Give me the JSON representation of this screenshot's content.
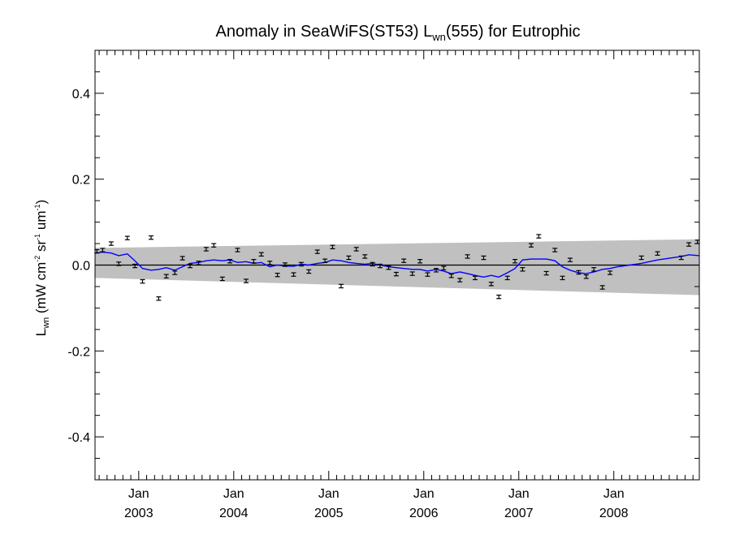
{
  "title": {
    "prefix": "Anomaly in SeaWiFS(ST53) L",
    "sub": "wn",
    "suffix": "(555) for Eutrophic"
  },
  "ylabel": {
    "main": "L",
    "sub": "wn",
    "rest1": " (mW cm",
    "sup1": "-2",
    "rest2": " sr",
    "sup2": "-1",
    "rest3": " um",
    "sup3": "-1",
    "rest4": ")"
  },
  "chart_data": {
    "type": "scatter",
    "xlim": [
      2002.54,
      2008.9
    ],
    "ylim": [
      -0.5,
      0.5
    ],
    "yticks": [
      0.4,
      0.2,
      0.0,
      -0.2,
      -0.4
    ],
    "ytick_labels": [
      "0.4",
      "0.2",
      "0.0",
      "-0.2",
      "-0.4"
    ],
    "xticks": [
      {
        "value": 2003.0,
        "month": "Jan",
        "year": "2003"
      },
      {
        "value": 2004.0,
        "month": "Jan",
        "year": "2004"
      },
      {
        "value": 2005.0,
        "month": "Jan",
        "year": "2005"
      },
      {
        "value": 2006.0,
        "month": "Jan",
        "year": "2006"
      },
      {
        "value": 2007.0,
        "month": "Jan",
        "year": "2007"
      },
      {
        "value": 2008.0,
        "month": "Jan",
        "year": "2008"
      }
    ],
    "zero_line": 0.0,
    "band": {
      "x": [
        2002.54,
        2008.9
      ],
      "upper": [
        0.04,
        0.06
      ],
      "lower": [
        -0.03,
        -0.07
      ]
    },
    "points": {
      "x": [
        2002.56,
        2002.62,
        2002.71,
        2002.79,
        2002.88,
        2002.96,
        2003.04,
        2003.13,
        2003.21,
        2003.29,
        2003.38,
        2003.46,
        2003.54,
        2003.63,
        2003.71,
        2003.79,
        2003.88,
        2003.96,
        2004.04,
        2004.13,
        2004.21,
        2004.29,
        2004.38,
        2004.46,
        2004.54,
        2004.63,
        2004.71,
        2004.79,
        2004.88,
        2004.96,
        2005.04,
        2005.13,
        2005.21,
        2005.29,
        2005.38,
        2005.46,
        2005.54,
        2005.63,
        2005.71,
        2005.79,
        2005.88,
        2005.96,
        2006.04,
        2006.13,
        2006.21,
        2006.29,
        2006.38,
        2006.46,
        2006.54,
        2006.63,
        2006.71,
        2006.79,
        2006.88,
        2006.96,
        2007.04,
        2007.13,
        2007.21,
        2007.29,
        2007.38,
        2007.46,
        2007.54,
        2007.63,
        2007.71,
        2007.79,
        2007.88,
        2007.96,
        2008.04,
        2008.29,
        2008.46,
        2008.71,
        2008.79,
        2008.88
      ],
      "y": [
        0.032,
        0.035,
        0.05,
        0.003,
        0.063,
        -0.002,
        -0.038,
        0.064,
        -0.078,
        -0.026,
        -0.018,
        0.016,
        -0.002,
        0.005,
        0.037,
        0.046,
        -0.032,
        0.009,
        0.035,
        -0.037,
        0.009,
        0.025,
        0.005,
        -0.023,
        0.001,
        -0.022,
        0.002,
        -0.015,
        0.031,
        0.01,
        0.042,
        -0.049,
        0.017,
        0.037,
        0.02,
        0.002,
        -0.002,
        -0.006,
        -0.021,
        0.01,
        -0.02,
        0.009,
        -0.022,
        -0.012,
        -0.007,
        -0.025,
        -0.035,
        0.02,
        -0.03,
        0.017,
        -0.044,
        -0.074,
        -0.03,
        0.009,
        -0.01,
        0.046,
        0.067,
        -0.019,
        0.035,
        -0.03,
        0.012,
        -0.017,
        -0.027,
        -0.01,
        -0.052,
        -0.018,
        null,
        0.017,
        0.027,
        0.017,
        0.048,
        0.054
      ],
      "error": 0.004
    },
    "smooth_line": {
      "color": "#0000ff",
      "x": [
        2002.54,
        2002.62,
        2002.71,
        2002.79,
        2002.88,
        2002.96,
        2003.04,
        2003.13,
        2003.21,
        2003.29,
        2003.38,
        2003.46,
        2003.54,
        2003.63,
        2003.71,
        2003.79,
        2003.88,
        2003.96,
        2004.04,
        2004.13,
        2004.21,
        2004.29,
        2004.38,
        2004.46,
        2004.54,
        2004.63,
        2004.71,
        2004.79,
        2004.88,
        2004.96,
        2005.04,
        2005.13,
        2005.21,
        2005.29,
        2005.38,
        2005.46,
        2005.54,
        2005.63,
        2005.71,
        2005.79,
        2005.88,
        2005.96,
        2006.04,
        2006.13,
        2006.21,
        2006.29,
        2006.38,
        2006.46,
        2006.54,
        2006.63,
        2006.71,
        2006.79,
        2006.88,
        2006.96,
        2007.04,
        2007.13,
        2007.21,
        2007.29,
        2007.38,
        2007.46,
        2007.54,
        2007.63,
        2007.71,
        2007.79,
        2007.88,
        2007.96,
        2008.04,
        2008.29,
        2008.46,
        2008.71,
        2008.79,
        2008.9
      ],
      "y": [
        0.028,
        0.03,
        0.028,
        0.022,
        0.026,
        0.01,
        -0.008,
        -0.012,
        -0.01,
        -0.006,
        -0.012,
        -0.004,
        0.004,
        0.006,
        0.01,
        0.012,
        0.01,
        0.012,
        0.006,
        0.008,
        0.004,
        0.006,
        -0.004,
        0.0,
        -0.002,
        -0.003,
        0.002,
        0.0,
        0.004,
        0.006,
        0.012,
        0.01,
        0.006,
        0.004,
        0.002,
        0.004,
        0.0,
        -0.004,
        -0.006,
        -0.008,
        -0.01,
        -0.01,
        -0.014,
        -0.01,
        -0.014,
        -0.02,
        -0.016,
        -0.02,
        -0.024,
        -0.028,
        -0.024,
        -0.028,
        -0.018,
        -0.008,
        0.012,
        0.014,
        0.014,
        0.014,
        0.01,
        -0.004,
        -0.012,
        -0.018,
        -0.02,
        -0.016,
        -0.01,
        -0.008,
        -0.004,
        0.004,
        0.012,
        0.02,
        0.024,
        0.022
      ]
    }
  }
}
